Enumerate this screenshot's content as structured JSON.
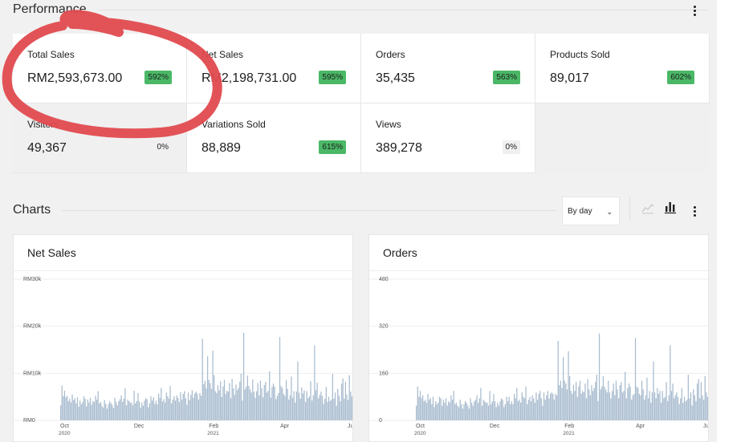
{
  "performance": {
    "title": "Performance",
    "tiles": [
      {
        "label": "Total Sales",
        "value": "RM2,593,673.00",
        "delta": "592%",
        "style": "up"
      },
      {
        "label": "Net Sales",
        "value": "RM2,198,731.00",
        "delta": "595%",
        "style": "up"
      },
      {
        "label": "Orders",
        "value": "35,435",
        "delta": "563%",
        "style": "up"
      },
      {
        "label": "Products Sold",
        "value": "89,017",
        "delta": "602%",
        "style": "up"
      },
      {
        "label": "Visitors",
        "value": "49,367",
        "delta": "0%",
        "style": "plain"
      },
      {
        "label": "Variations Sold",
        "value": "88,889",
        "delta": "615%",
        "style": "up"
      },
      {
        "label": "Views",
        "value": "389,278",
        "delta": "0%",
        "style": "zero"
      }
    ]
  },
  "charts_section": {
    "title": "Charts",
    "interval": "By day",
    "line_chart_icon": "line-chart-icon",
    "bar_chart_icon": "bar-chart-icon",
    "menu_icon": "more-vertical-icon"
  },
  "colors": {
    "delta_up": "#4ab866",
    "bar": "#a9bccf",
    "annotation": "#e04a4f"
  },
  "chart_data": [
    {
      "type": "bar",
      "title": "Net Sales",
      "ylim": [
        0,
        30000
      ],
      "y_ticks": [
        "RM0",
        "RM10k",
        "RM20k",
        "RM30k"
      ],
      "x_ticks": [
        {
          "label": "Oct",
          "sub": "2020"
        },
        {
          "label": "Dec",
          "sub": ""
        },
        {
          "label": "Feb",
          "sub": "2021"
        },
        {
          "label": "Apr",
          "sub": ""
        },
        {
          "label": "Jun",
          "sub": ""
        }
      ],
      "x_range": [
        "2020-10-01",
        "2021-06-01"
      ],
      "daily_values": [
        3200,
        7400,
        5100,
        6300,
        4900,
        5200,
        4100,
        4600,
        3800,
        5500,
        4300,
        4700,
        3600,
        4900,
        2900,
        4200,
        3400,
        3900,
        5100,
        4600,
        3000,
        4400,
        3800,
        4800,
        3300,
        4100,
        3900,
        5200,
        4400,
        6200,
        3600,
        3900,
        3100,
        2700,
        4300,
        3500,
        2500,
        3400,
        4000,
        3700,
        3300,
        2600,
        4800,
        3900,
        3200,
        4100,
        4500,
        5300,
        3900,
        4600,
        6800,
        3200,
        4400,
        4100,
        3700,
        3800,
        3200,
        6300,
        3600,
        4100,
        5800,
        4000,
        2700,
        3800,
        3100,
        4200,
        4700,
        4500,
        2800,
        3600,
        5100,
        4200,
        4900,
        3500,
        4200,
        3400,
        5700,
        4800,
        6900,
        4000,
        4500,
        3800,
        5900,
        5100,
        4600,
        7300,
        3600,
        4400,
        5100,
        4200,
        5300,
        4800,
        3900,
        6000,
        4400,
        5600,
        6200,
        4700,
        3300,
        5900,
        4300,
        5400,
        6400,
        4800,
        5700,
        6100,
        5600,
        4400,
        5800,
        5200,
        17300,
        7700,
        8400,
        6800,
        13600,
        8600,
        7900,
        6700,
        14800,
        9600,
        6200,
        5800,
        7500,
        6400,
        8300,
        5000,
        7200,
        8600,
        5600,
        6300,
        6100,
        7900,
        4700,
        8800,
        6800,
        5400,
        7600,
        6400,
        6900,
        8200,
        9900,
        4200,
        18600,
        6600,
        7200,
        9500,
        7300,
        6600,
        5900,
        8700,
        6100,
        4800,
        6200,
        7900,
        5300,
        8400,
        6800,
        4900,
        7500,
        8200,
        5900,
        6300,
        10400,
        4800,
        7100,
        7800,
        7200,
        4500,
        5200,
        5800,
        17700,
        7300,
        6900,
        5600,
        5200,
        8600,
        6700,
        4400,
        5300,
        9300,
        4800,
        6200,
        3800,
        6100,
        12500,
        5900,
        4600,
        7000,
        5700,
        6400,
        3900,
        6200,
        4700,
        5100,
        8300,
        4200,
        5300,
        15900,
        6400,
        8000,
        4700,
        5400,
        6100,
        5200,
        3500,
        4600,
        7100,
        3900,
        5000,
        4100,
        4400,
        9900,
        4600,
        5900,
        3100,
        6700,
        5200,
        4000,
        7800,
        8900,
        4600,
        8200,
        5500,
        4300,
        9600,
        6100,
        5100,
        10100
      ]
    },
    {
      "type": "bar",
      "title": "Orders",
      "ylim": [
        0,
        480
      ],
      "y_ticks": [
        "0",
        "160",
        "320",
        "480"
      ],
      "x_ticks": [
        {
          "label": "Oct",
          "sub": "2020"
        },
        {
          "label": "Dec",
          "sub": ""
        },
        {
          "label": "Feb",
          "sub": "2021"
        },
        {
          "label": "Apr",
          "sub": ""
        },
        {
          "label": "Jun",
          "sub": ""
        }
      ],
      "x_range": [
        "2020-10-01",
        "2021-06-01"
      ],
      "daily_values": [
        50,
        115,
        80,
        100,
        75,
        85,
        65,
        70,
        60,
        90,
        70,
        75,
        55,
        80,
        45,
        65,
        55,
        60,
        80,
        75,
        50,
        70,
        60,
        75,
        50,
        65,
        60,
        85,
        70,
        100,
        55,
        60,
        50,
        45,
        70,
        55,
        40,
        55,
        65,
        60,
        50,
        40,
        75,
        60,
        50,
        65,
        70,
        85,
        60,
        75,
        110,
        50,
        70,
        65,
        60,
        60,
        50,
        100,
        55,
        65,
        90,
        65,
        45,
        60,
        50,
        65,
        75,
        70,
        45,
        55,
        80,
        65,
        80,
        55,
        65,
        55,
        90,
        75,
        110,
        65,
        70,
        60,
        95,
        80,
        75,
        115,
        55,
        70,
        80,
        65,
        85,
        75,
        60,
        95,
        70,
        90,
        100,
        75,
        50,
        95,
        70,
        85,
        100,
        75,
        90,
        95,
        90,
        70,
        90,
        85,
        270,
        120,
        135,
        110,
        215,
        135,
        125,
        105,
        235,
        150,
        100,
        90,
        120,
        100,
        130,
        80,
        115,
        135,
        90,
        100,
        95,
        125,
        75,
        140,
        105,
        85,
        120,
        100,
        110,
        130,
        155,
        65,
        295,
        105,
        115,
        150,
        115,
        105,
        95,
        135,
        95,
        75,
        100,
        125,
        85,
        135,
        105,
        75,
        120,
        130,
        95,
        100,
        165,
        75,
        110,
        125,
        115,
        70,
        85,
        90,
        280,
        115,
        110,
        90,
        85,
        135,
        105,
        70,
        85,
        145,
        75,
        100,
        60,
        95,
        200,
        95,
        75,
        110,
        90,
        100,
        60,
        100,
        75,
        80,
        130,
        65,
        85,
        255,
        100,
        125,
        75,
        85,
        95,
        80,
        55,
        75,
        110,
        60,
        80,
        65,
        70,
        155,
        75,
        95,
        50,
        105,
        85,
        65,
        125,
        140,
        75,
        130,
        85,
        70,
        150,
        95,
        80,
        160
      ]
    }
  ]
}
